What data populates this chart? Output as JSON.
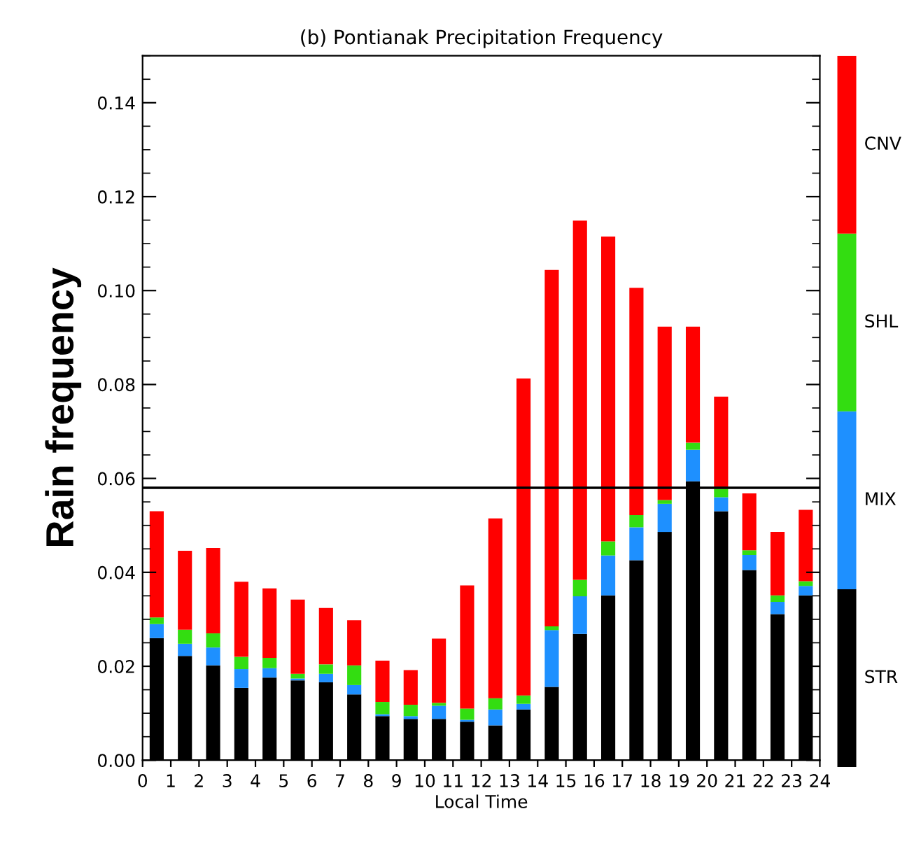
{
  "chart_data": {
    "type": "bar",
    "stacked": true,
    "title": "(b) Pontianak Precipitation Frequency",
    "xlabel": "Local Time",
    "ylabel": "Rain frequency",
    "x": [
      0.5,
      1.5,
      2.5,
      3.5,
      4.5,
      5.5,
      6.5,
      7.5,
      8.5,
      9.5,
      10.5,
      11.5,
      12.5,
      13.5,
      14.5,
      15.5,
      16.5,
      17.5,
      18.5,
      19.5,
      20.5,
      21.5,
      22.5,
      23.5
    ],
    "xlim": [
      0,
      24
    ],
    "xticks": [
      0,
      1,
      2,
      3,
      4,
      5,
      6,
      7,
      8,
      9,
      10,
      11,
      12,
      13,
      14,
      15,
      16,
      17,
      18,
      19,
      20,
      21,
      22,
      23,
      24
    ],
    "ylim": [
      0,
      0.15
    ],
    "yticks": [
      {
        "value": 0,
        "label": "0.00"
      },
      {
        "value": 0.02,
        "label": "0.02"
      },
      {
        "value": 0.04,
        "label": "0.04"
      },
      {
        "value": 0.06,
        "label": "0.06"
      },
      {
        "value": 0.08,
        "label": "0.08"
      },
      {
        "value": 0.1,
        "label": "0.10"
      },
      {
        "value": 0.12,
        "label": "0.12"
      },
      {
        "value": 0.14,
        "label": "0.14"
      }
    ],
    "series": [
      {
        "name": "STR",
        "color": "#000000",
        "values": [
          0.026,
          0.0222,
          0.0202,
          0.0154,
          0.0176,
          0.017,
          0.0166,
          0.014,
          0.0094,
          0.0088,
          0.0088,
          0.0082,
          0.0074,
          0.0108,
          0.0156,
          0.0269,
          0.0351,
          0.0426,
          0.0486,
          0.0594,
          0.053,
          0.0405,
          0.0311,
          0.0351
        ]
      },
      {
        "name": "MIX",
        "color": "#1e90ff",
        "values": [
          0.003,
          0.0026,
          0.0038,
          0.004,
          0.002,
          0.0004,
          0.0018,
          0.002,
          0.0004,
          0.0006,
          0.0028,
          0.0004,
          0.0034,
          0.0012,
          0.0121,
          0.008,
          0.0085,
          0.007,
          0.006,
          0.0067,
          0.003,
          0.0032,
          0.0026,
          0.002
        ]
      },
      {
        "name": "SHL",
        "color": "#33dd11",
        "values": [
          0.0014,
          0.003,
          0.003,
          0.0026,
          0.0022,
          0.001,
          0.002,
          0.0042,
          0.0026,
          0.0024,
          0.0006,
          0.0024,
          0.0024,
          0.0018,
          0.0008,
          0.0035,
          0.003,
          0.0026,
          0.0008,
          0.0015,
          0.0018,
          0.001,
          0.0014,
          0.001
        ]
      },
      {
        "name": "CNV",
        "color": "#ff0000",
        "values": [
          0.0226,
          0.0168,
          0.0182,
          0.016,
          0.0148,
          0.0158,
          0.012,
          0.0096,
          0.0088,
          0.0074,
          0.0137,
          0.0262,
          0.0383,
          0.0675,
          0.0759,
          0.0765,
          0.0649,
          0.0484,
          0.0369,
          0.0247,
          0.0196,
          0.0121,
          0.0135,
          0.0152
        ]
      }
    ],
    "ref_lines": [
      {
        "axis": "y",
        "value": 0.058,
        "color": "#000000",
        "line_style": "solid"
      }
    ],
    "legend": "right",
    "grid": false
  }
}
